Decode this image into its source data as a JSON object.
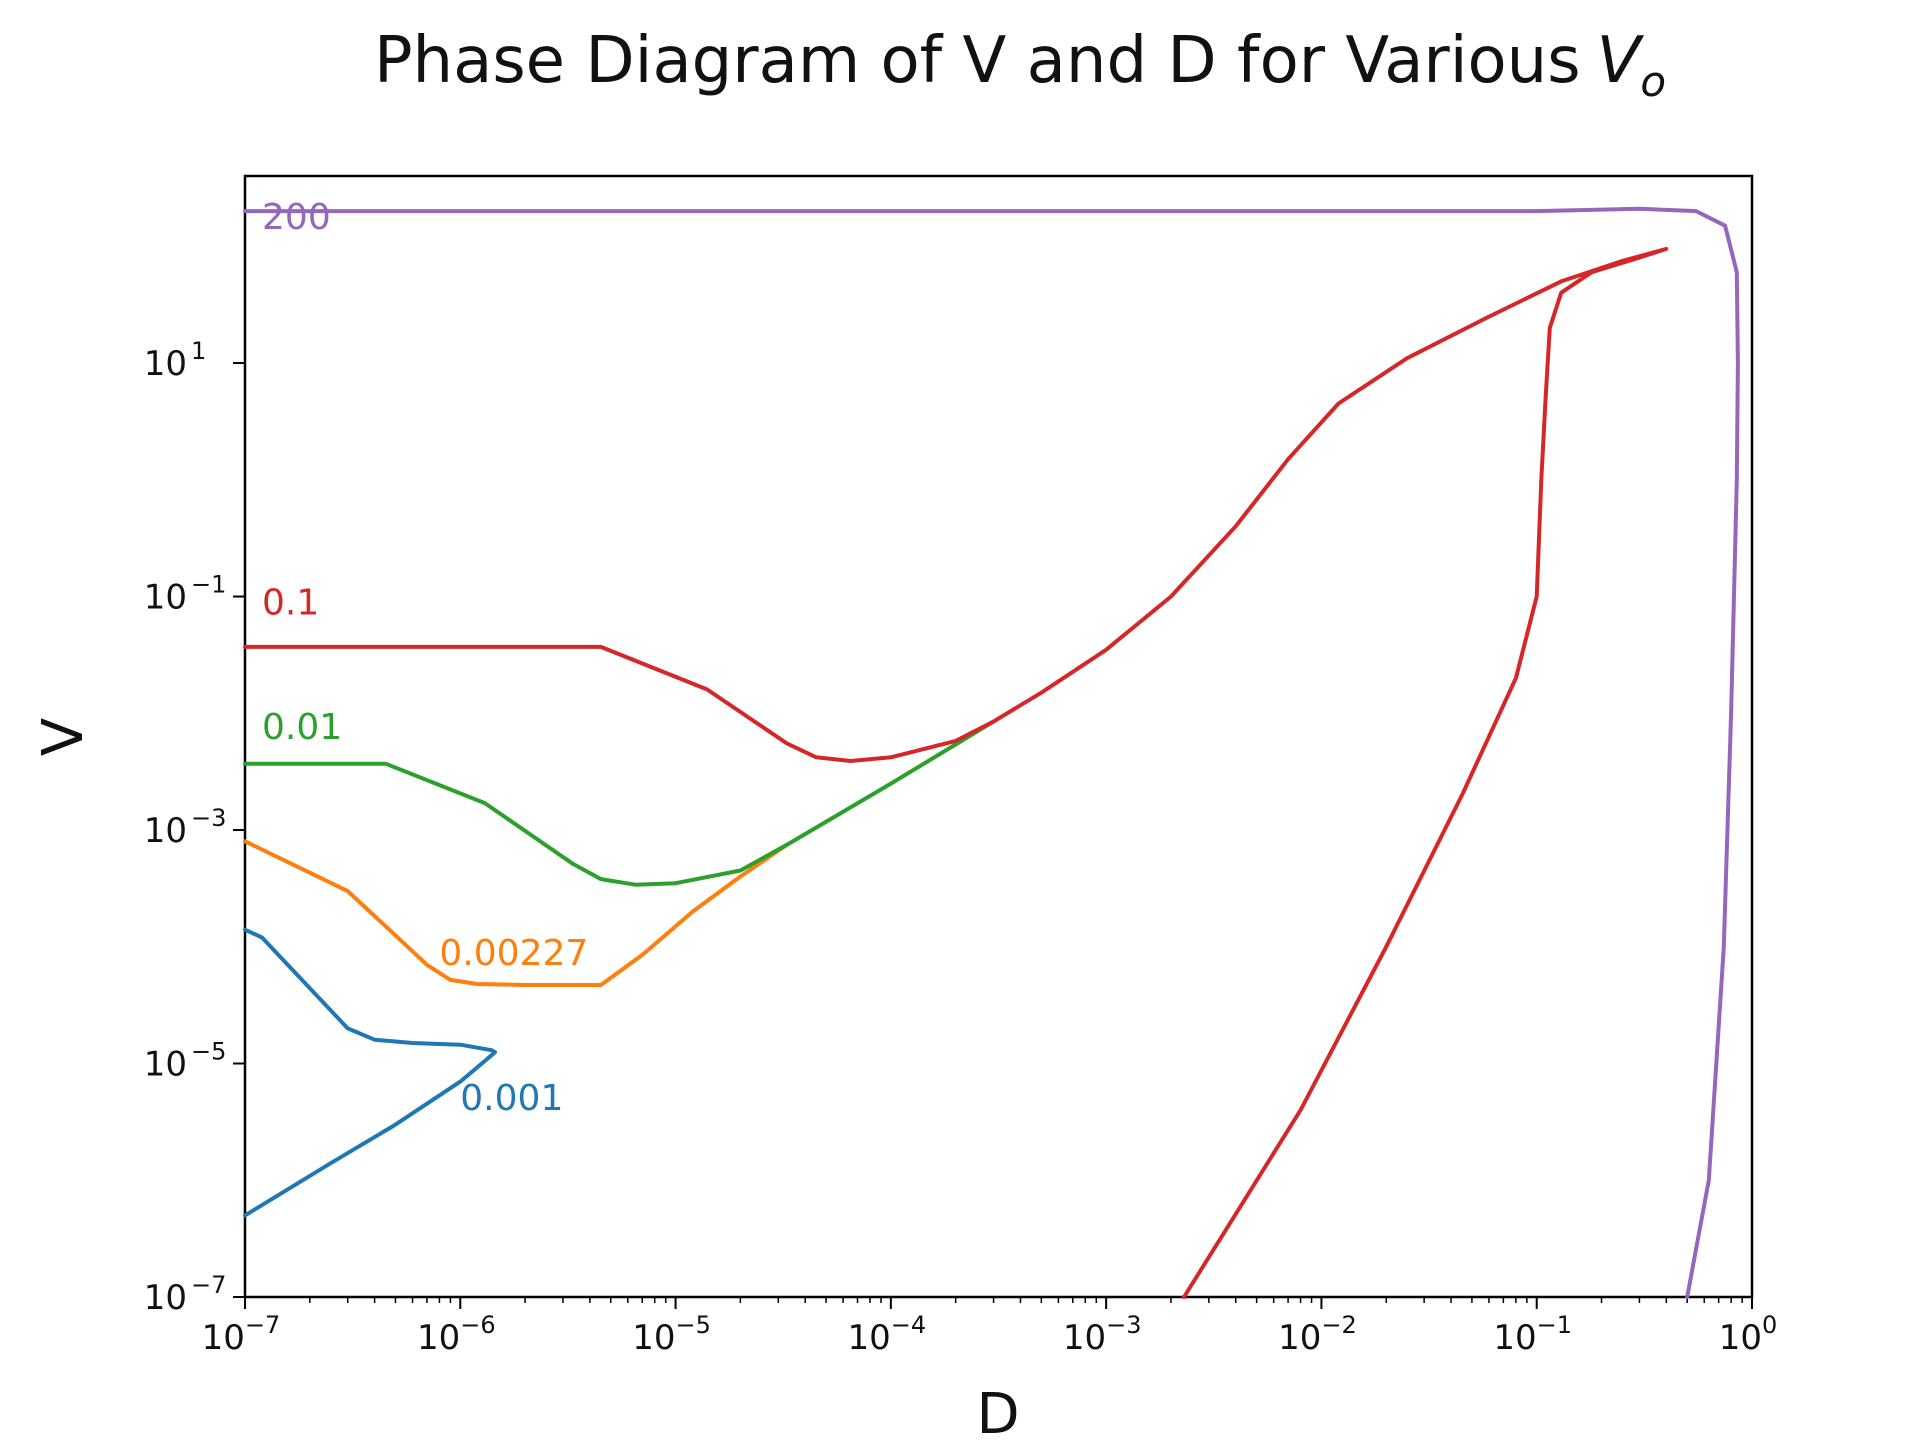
{
  "chart_data": {
    "type": "line",
    "title": "Phase Diagram of V and D for Various",
    "title_math": "V",
    "title_math_sub": "o",
    "xlabel": "D",
    "ylabel": "V",
    "x_scale": "log",
    "y_scale": "log",
    "xlim": [
      1e-07,
      1
    ],
    "ylim": [
      1e-07,
      400
    ],
    "x_ticks": [
      {
        "value": 1e-07,
        "base": "10",
        "exp": "−7"
      },
      {
        "value": 1e-06,
        "base": "10",
        "exp": "−6"
      },
      {
        "value": 1e-05,
        "base": "10",
        "exp": "−5"
      },
      {
        "value": 0.0001,
        "base": "10",
        "exp": "−4"
      },
      {
        "value": 0.001,
        "base": "10",
        "exp": "−3"
      },
      {
        "value": 0.01,
        "base": "10",
        "exp": "−2"
      },
      {
        "value": 0.1,
        "base": "10",
        "exp": "−1"
      },
      {
        "value": 1,
        "base": "10",
        "exp": "0"
      }
    ],
    "y_ticks": [
      {
        "value": 1e-07,
        "base": "10",
        "exp": "−7"
      },
      {
        "value": 1e-05,
        "base": "10",
        "exp": "−5"
      },
      {
        "value": 0.001,
        "base": "10",
        "exp": "−3"
      },
      {
        "value": 0.1,
        "base": "10",
        "exp": "−1"
      },
      {
        "value": 10,
        "base": "10",
        "exp": "1"
      }
    ],
    "grid": false,
    "legend": "inline labels",
    "series": [
      {
        "name": "0.001",
        "color": "#1f77b4",
        "label_at": {
          "x": 1e-06,
          "y": 4e-06
        },
        "points": [
          [
            1e-07,
            0.00014
          ],
          [
            1.2e-07,
            0.00012
          ],
          [
            3e-07,
            2e-05
          ],
          [
            4e-07,
            1.6e-05
          ],
          [
            6e-07,
            1.5e-05
          ],
          [
            1e-06,
            1.45e-05
          ],
          [
            1.4e-06,
            1.3e-05
          ],
          [
            1.45e-06,
            1.25e-05
          ],
          [
            1.3e-06,
            1.05e-05
          ],
          [
            1e-06,
            7e-06
          ],
          [
            5e-07,
            3e-06
          ],
          [
            2.5e-07,
            1.4e-06
          ],
          [
            1e-07,
            5e-07
          ]
        ]
      },
      {
        "name": "0.00227",
        "color": "#ff7f0e",
        "label_at": {
          "x": 8e-07,
          "y": 7e-05
        },
        "points": [
          [
            1e-07,
            0.0008
          ],
          [
            3e-07,
            0.0003
          ],
          [
            4.5e-07,
            0.00015
          ],
          [
            7e-07,
            7e-05
          ],
          [
            9e-07,
            5.2e-05
          ],
          [
            1.2e-06,
            4.8e-05
          ],
          [
            2e-06,
            4.7e-05
          ],
          [
            4.5e-06,
            4.7e-05
          ],
          [
            7e-06,
            8.5e-05
          ],
          [
            1.2e-05,
            0.0002
          ],
          [
            2e-05,
            0.0004
          ],
          [
            3.3e-05,
            0.00075
          ]
        ]
      },
      {
        "name": "0.01",
        "color": "#2ca02c",
        "label_at": {
          "x": 1.2e-07,
          "y": 0.006
        },
        "points": [
          [
            1e-07,
            0.0037
          ],
          [
            4.5e-07,
            0.0037
          ],
          [
            1.3e-06,
            0.0017
          ],
          [
            3.3e-06,
            0.00052
          ],
          [
            4.5e-06,
            0.00038
          ],
          [
            6.5e-06,
            0.00034
          ],
          [
            1e-05,
            0.00035
          ],
          [
            2e-05,
            0.00045
          ],
          [
            3.3e-05,
            0.00075
          ],
          [
            0.0001,
            0.0025
          ],
          [
            0.0003,
            0.0085
          ]
        ]
      },
      {
        "name": "0.1",
        "color": "#d62728",
        "label_at": {
          "x": 1.2e-07,
          "y": 0.07
        },
        "points": [
          [
            1e-07,
            0.037
          ],
          [
            4.5e-06,
            0.037
          ],
          [
            1.4e-05,
            0.016
          ],
          [
            3.3e-05,
            0.0055
          ],
          [
            4.5e-05,
            0.0042
          ],
          [
            6.5e-05,
            0.0039
          ],
          [
            0.0001,
            0.0042
          ],
          [
            0.0002,
            0.0058
          ],
          [
            0.0003,
            0.0085
          ],
          [
            0.0005,
            0.015
          ],
          [
            0.001,
            0.035
          ],
          [
            0.002,
            0.1
          ],
          [
            0.004,
            0.4
          ],
          [
            0.007,
            1.5
          ],
          [
            0.012,
            4.5
          ],
          [
            0.025,
            11
          ],
          [
            0.06,
            25
          ],
          [
            0.13,
            50
          ],
          [
            0.25,
            75
          ],
          [
            0.4,
            95
          ],
          [
            0.3,
            80
          ],
          [
            0.18,
            60
          ],
          [
            0.13,
            40
          ],
          [
            0.115,
            20
          ],
          [
            0.11,
            5
          ],
          [
            0.105,
            1
          ],
          [
            0.1,
            0.1
          ],
          [
            0.08,
            0.02
          ],
          [
            0.045,
            0.002
          ],
          [
            0.02,
            0.0001
          ],
          [
            0.008,
            4e-06
          ],
          [
            0.0023,
            1e-07
          ]
        ]
      },
      {
        "name": "200",
        "color": "#9467bd",
        "label_at": {
          "x": 1.2e-07,
          "y": 140
        },
        "points": [
          [
            1e-07,
            200
          ],
          [
            0.001,
            200
          ],
          [
            0.01,
            200
          ],
          [
            0.1,
            200
          ],
          [
            0.3,
            210
          ],
          [
            0.55,
            200
          ],
          [
            0.75,
            150
          ],
          [
            0.85,
            60
          ],
          [
            0.86,
            10
          ],
          [
            0.85,
            1
          ],
          [
            0.8,
            0.01
          ],
          [
            0.74,
            0.0001
          ],
          [
            0.63,
            1e-06
          ],
          [
            0.5,
            1e-07
          ]
        ]
      }
    ]
  }
}
